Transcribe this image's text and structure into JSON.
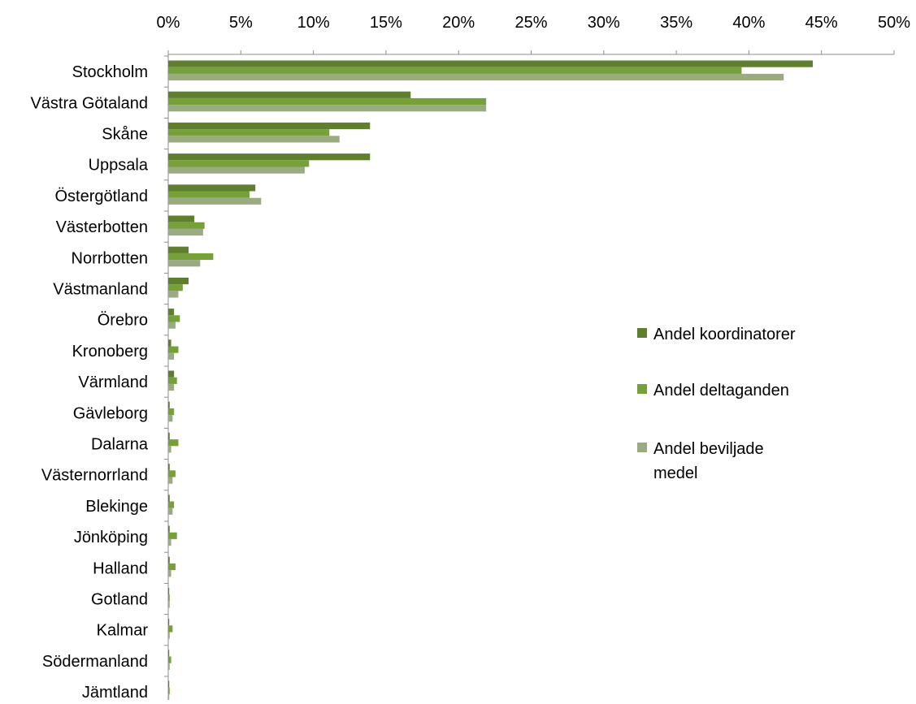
{
  "chart_data": {
    "type": "bar",
    "orientation": "horizontal",
    "title": "",
    "xlabel": "",
    "ylabel": "",
    "xlim": [
      0,
      50
    ],
    "x_ticks": [
      0,
      5,
      10,
      15,
      20,
      25,
      30,
      35,
      40,
      45,
      50
    ],
    "x_tick_labels": [
      "0%",
      "5%",
      "10%",
      "15%",
      "20%",
      "25%",
      "30%",
      "35%",
      "40%",
      "45%",
      "50%"
    ],
    "x_axis_position": "top",
    "grid": false,
    "legend_position": "right",
    "categories": [
      "Stockholm",
      "Västra Götaland",
      "Skåne",
      "Uppsala",
      "Östergötland",
      "Västerbotten",
      "Norrbotten",
      "Västmanland",
      "Örebro",
      "Kronoberg",
      "Värmland",
      "Gävleborg",
      "Dalarna",
      "Västernorrland",
      "Blekinge",
      "Jönköping",
      "Halland",
      "Gotland",
      "Kalmar",
      "Södermanland",
      "Jämtland"
    ],
    "series": [
      {
        "name": "Andel koordinatorer",
        "color": "#5f7f2f",
        "values": [
          44.4,
          16.7,
          13.9,
          13.9,
          6.0,
          1.8,
          1.4,
          1.4,
          0.4,
          0.2,
          0.4,
          0.1,
          0.1,
          0.1,
          0.1,
          0.1,
          0.1,
          0.0,
          0.0,
          0.0,
          0.0
        ]
      },
      {
        "name": "Andel deltaganden",
        "color": "#76a03a",
        "values": [
          39.5,
          21.9,
          11.1,
          9.7,
          5.6,
          2.5,
          3.1,
          1.0,
          0.8,
          0.7,
          0.6,
          0.4,
          0.7,
          0.5,
          0.4,
          0.6,
          0.5,
          0.1,
          0.3,
          0.2,
          0.1
        ]
      },
      {
        "name": "Andel beviljade medel",
        "name_lines": [
          "Andel beviljade",
          "medel"
        ],
        "color": "#9aab82",
        "values": [
          42.4,
          21.9,
          11.8,
          9.4,
          6.4,
          2.4,
          2.2,
          0.7,
          0.5,
          0.4,
          0.4,
          0.3,
          0.2,
          0.3,
          0.3,
          0.2,
          0.2,
          0.1,
          0.1,
          0.1,
          0.0
        ]
      }
    ]
  }
}
